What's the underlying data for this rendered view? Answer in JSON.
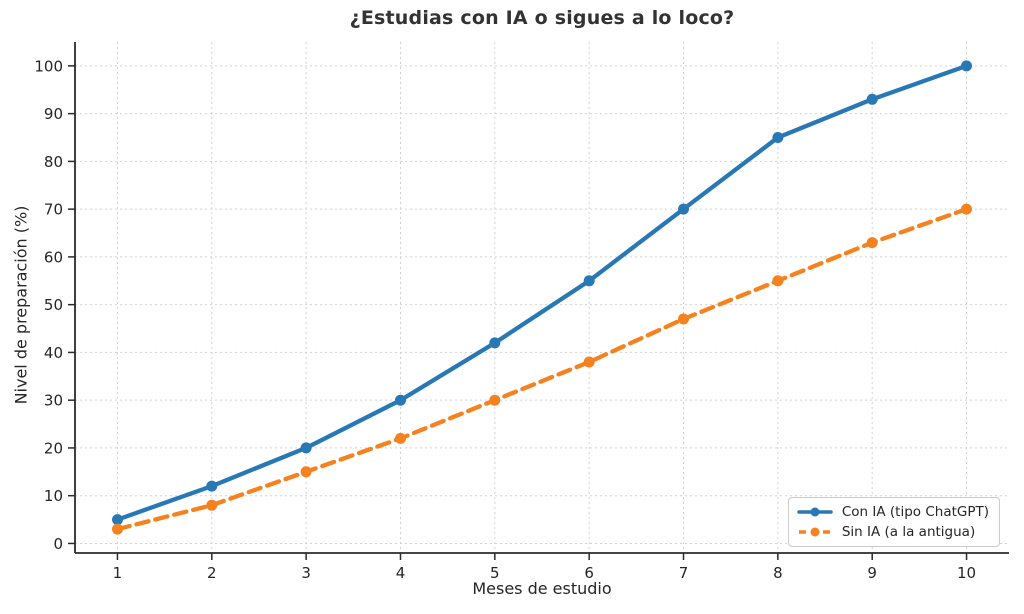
{
  "chart_data": {
    "type": "line",
    "title": "¿Estudias con IA o sigues a lo loco?",
    "xlabel": "Meses de estudio",
    "ylabel": "Nivel de preparación (%)",
    "x": [
      1,
      2,
      3,
      4,
      5,
      6,
      7,
      8,
      9,
      10
    ],
    "series": [
      {
        "name": "Con IA (tipo ChatGPT)",
        "values": [
          5,
          12,
          20,
          30,
          42,
          55,
          70,
          85,
          93,
          100
        ],
        "color": "#2878b5",
        "style": "solid"
      },
      {
        "name": "Sin IA (a la antigua)",
        "values": [
          3,
          8,
          15,
          22,
          30,
          38,
          47,
          55,
          63,
          70
        ],
        "color": "#f5821e",
        "style": "dashed"
      }
    ],
    "xticks": [
      1,
      2,
      3,
      4,
      5,
      6,
      7,
      8,
      9,
      10
    ],
    "yticks": [
      0,
      10,
      20,
      30,
      40,
      50,
      60,
      70,
      80,
      90,
      100
    ],
    "xlim": [
      0.55,
      10.45
    ],
    "ylim": [
      -2,
      105
    ],
    "grid": true,
    "grid_color": "#d2d2d2",
    "legend_position": "lower right",
    "background": "#ffffff"
  }
}
